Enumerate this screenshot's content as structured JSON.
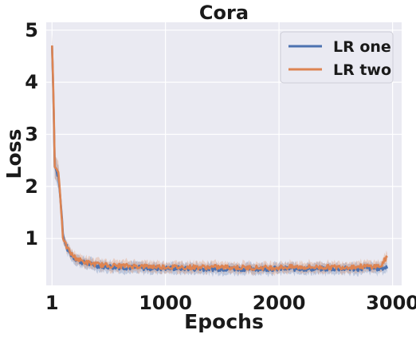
{
  "chart_data": {
    "type": "line",
    "title": "Cora",
    "xlabel": "Epochs",
    "ylabel": "Loss",
    "xlim": [
      -50,
      3080
    ],
    "ylim": [
      0.1,
      5.15
    ],
    "xticks": [
      1,
      1000,
      2000,
      3000
    ],
    "xtick_labels": [
      "1",
      "1000",
      "2000",
      "3000"
    ],
    "yticks": [
      1,
      2,
      3,
      4,
      5
    ],
    "ytick_labels": [
      "1",
      "2",
      "3",
      "4",
      "5"
    ],
    "grid": true,
    "legend_position": "top-right",
    "series": [
      {
        "name": "LR one",
        "color": "#4c72b0",
        "x": [
          1,
          15,
          25,
          40,
          55,
          70,
          85,
          100,
          120,
          140,
          160,
          180,
          200,
          250,
          300,
          400,
          500,
          700,
          900,
          1100,
          1300,
          1500,
          1700,
          1900,
          2100,
          2300,
          2500,
          2700,
          2900,
          2960
        ],
        "y": [
          4.7,
          3.6,
          2.4,
          2.3,
          2.2,
          1.9,
          1.5,
          1.0,
          0.9,
          0.78,
          0.72,
          0.66,
          0.62,
          0.56,
          0.52,
          0.48,
          0.46,
          0.44,
          0.43,
          0.43,
          0.42,
          0.42,
          0.42,
          0.42,
          0.42,
          0.42,
          0.42,
          0.42,
          0.43,
          0.45
        ]
      },
      {
        "name": "LR two",
        "color": "#dd8452",
        "x": [
          1,
          15,
          25,
          40,
          55,
          70,
          85,
          100,
          120,
          140,
          160,
          180,
          200,
          250,
          300,
          400,
          500,
          700,
          900,
          1100,
          1300,
          1500,
          1700,
          1900,
          2100,
          2300,
          2500,
          2700,
          2900,
          2940,
          2960
        ],
        "y": [
          4.7,
          3.7,
          2.4,
          2.35,
          2.3,
          2.0,
          1.4,
          0.95,
          0.88,
          0.8,
          0.74,
          0.68,
          0.64,
          0.58,
          0.54,
          0.5,
          0.48,
          0.47,
          0.46,
          0.45,
          0.45,
          0.45,
          0.44,
          0.44,
          0.45,
          0.45,
          0.45,
          0.46,
          0.47,
          0.62,
          0.6
        ]
      }
    ]
  }
}
